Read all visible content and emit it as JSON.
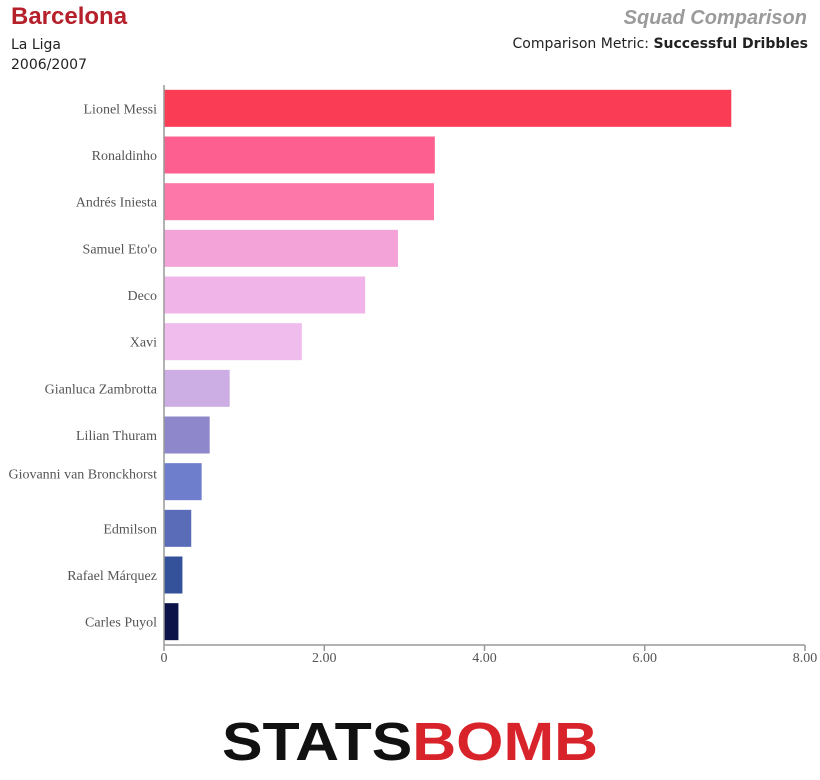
{
  "header": {
    "team": "Barcelona",
    "competition": "La Liga",
    "season": "2006/2007",
    "chart_kind": "Squad Comparison",
    "metric_label": "Comparison Metric:",
    "metric_name": "Successful Dribbles"
  },
  "logo": {
    "text": "STATSBOMB",
    "colors": {
      "dark": "#111111",
      "accent": "#d8232a"
    }
  },
  "chart_data": {
    "type": "bar",
    "orientation": "horizontal",
    "categories": [
      "Lionel Messi",
      "Ronaldinho",
      "Andrés Iniesta",
      "Samuel Eto'o",
      "Deco",
      "Xavi",
      "Gianluca Zambrotta",
      "Lilian Thuram",
      "Giovanni van Bronckhorst",
      "Edmilson",
      "Rafael Márquez",
      "Carles Puyol"
    ],
    "values": [
      7.08,
      3.38,
      3.37,
      2.92,
      2.51,
      1.72,
      0.82,
      0.57,
      0.47,
      0.34,
      0.23,
      0.18
    ],
    "colors": [
      "#fa3d55",
      "#fd6090",
      "#fd78a8",
      "#f3a3d8",
      "#f1b4e8",
      "#f0bced",
      "#ccaee4",
      "#8f87cc",
      "#6e7dcc",
      "#5a6cb8",
      "#33529a",
      "#0c1348"
    ],
    "xlim": [
      0,
      8
    ],
    "xticks": [
      "0",
      "2.00",
      "4.00",
      "6.00",
      "8.00"
    ],
    "grid": false
  }
}
